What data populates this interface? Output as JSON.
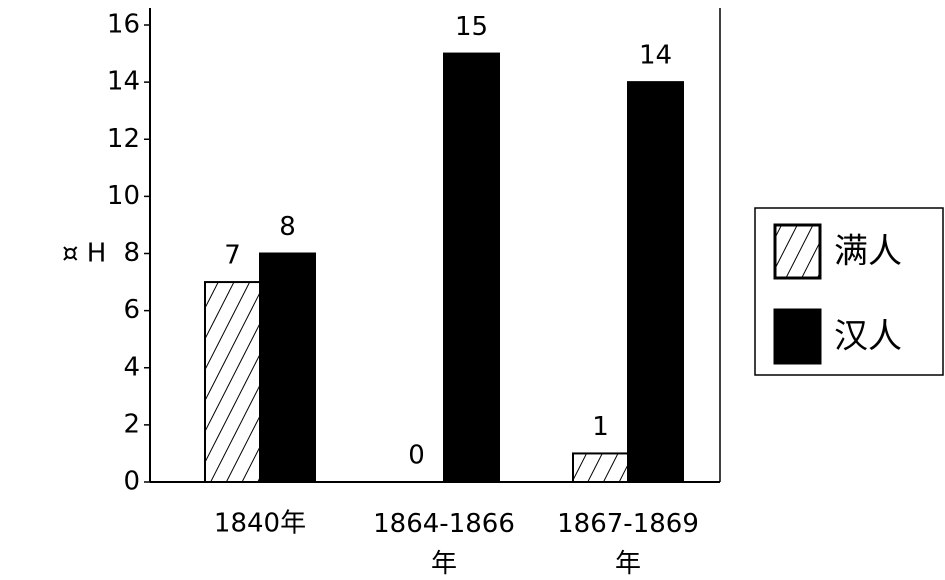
{
  "chart_data": {
    "type": "bar",
    "y_label": "¤ H",
    "categories": [
      "1840年",
      "1864-1866年",
      "1867-1869年"
    ],
    "series": [
      {
        "name": "满人",
        "color": "#000000",
        "hatch": true,
        "values": [
          7,
          0,
          1
        ]
      },
      {
        "name": "汉人",
        "color": "#000000",
        "hatch": false,
        "values": [
          8,
          15,
          14
        ]
      }
    ],
    "ylim": [
      0,
      16
    ],
    "yticks": [
      0,
      2,
      4,
      6,
      8,
      10,
      12,
      14,
      16
    ],
    "grid": false,
    "legend": "right"
  }
}
